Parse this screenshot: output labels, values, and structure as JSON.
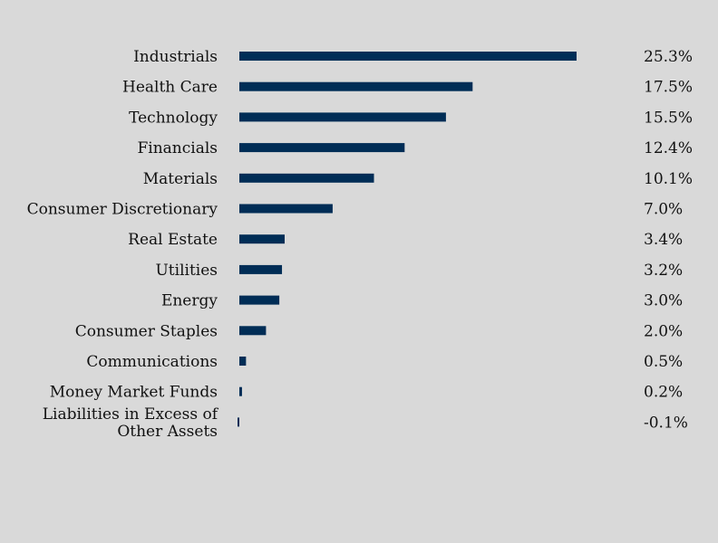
{
  "colors": {
    "background": "#d9d9d9",
    "bar": "#002d56"
  },
  "chart_data": {
    "type": "bar",
    "orientation": "horizontal",
    "categories": [
      "Industrials",
      "Health Care",
      "Technology",
      "Financials",
      "Materials",
      "Consumer Discretionary",
      "Real Estate",
      "Utilities",
      "Energy",
      "Consumer Staples",
      "Communications",
      "Money Market Funds",
      "Liabilities in Excess of Other Assets"
    ],
    "category_label_lines": [
      [
        "Industrials"
      ],
      [
        "Health Care"
      ],
      [
        "Technology"
      ],
      [
        "Financials"
      ],
      [
        "Materials"
      ],
      [
        "Consumer Discretionary"
      ],
      [
        "Real Estate"
      ],
      [
        "Utilities"
      ],
      [
        "Energy"
      ],
      [
        "Consumer Staples"
      ],
      [
        "Communications"
      ],
      [
        "Money Market Funds"
      ],
      [
        "Liabilities in Excess of",
        "Other Assets"
      ]
    ],
    "values": [
      25.3,
      17.5,
      15.5,
      12.4,
      10.1,
      7.0,
      3.4,
      3.2,
      3.0,
      2.0,
      0.5,
      0.2,
      -0.1
    ],
    "value_labels": [
      "25.3%",
      "17.5%",
      "15.5%",
      "12.4%",
      "10.1%",
      "7.0%",
      "3.4%",
      "3.2%",
      "3.0%",
      "2.0%",
      "0.5%",
      "0.2%",
      "-0.1%"
    ],
    "unit": "%",
    "xlim": [
      0,
      25.3
    ],
    "grid": false,
    "legend": "none"
  }
}
